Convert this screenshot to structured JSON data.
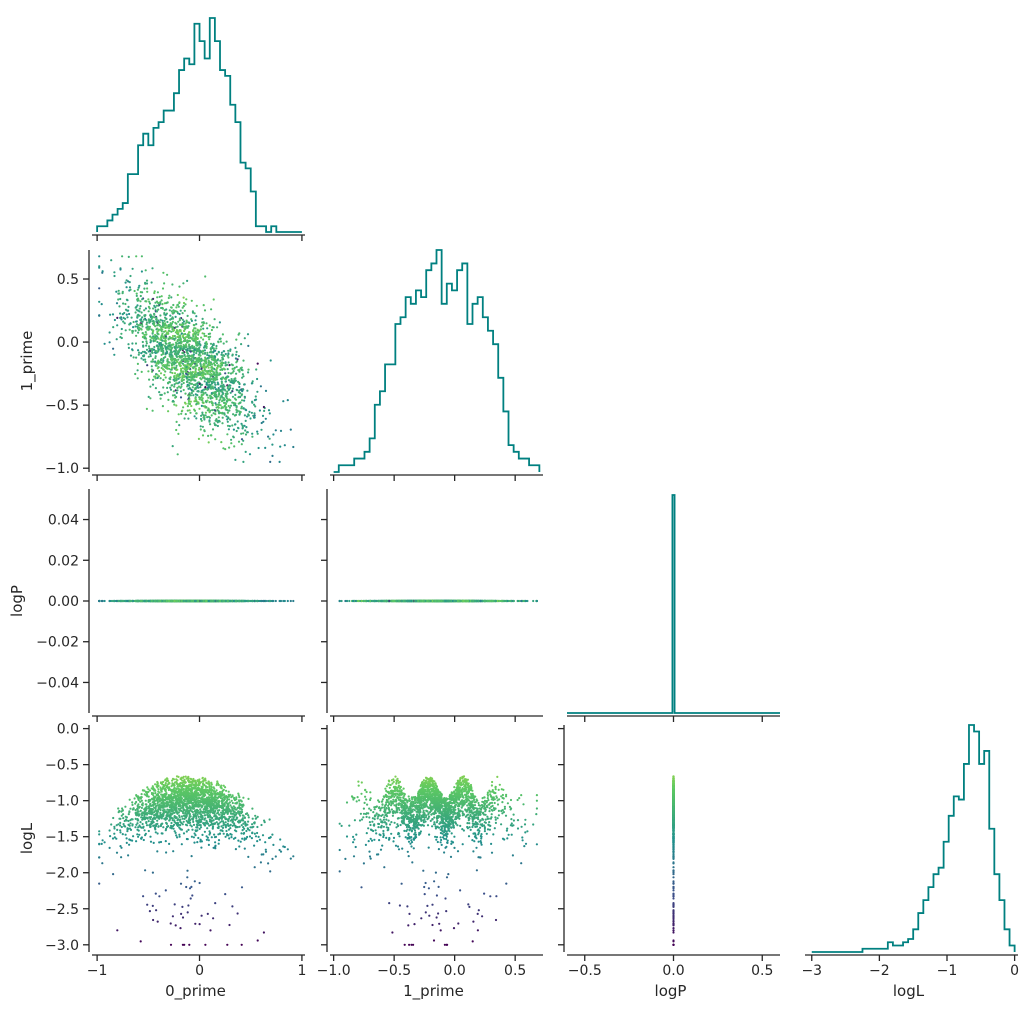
{
  "chart_data": {
    "type": "corner",
    "variables": [
      "0_prime",
      "1_prime",
      "logP",
      "logL"
    ],
    "colors": {
      "histogram": "#008080",
      "axes": "#262626",
      "colormap": "viridis",
      "colormap_stops": [
        "#440154",
        "#3b528b",
        "#21918c",
        "#5ec962",
        "#fde725"
      ]
    },
    "color_by": "logL",
    "ranges": {
      "0_prime": [
        -1.05,
        1.03
      ],
      "1_prime": [
        -1.03,
        0.73
      ],
      "logP": [
        -0.055,
        0.055
      ],
      "logL": [
        -3.1,
        0.05
      ]
    },
    "ticks": {
      "0_prime": {
        "values": [
          -1,
          0,
          1
        ],
        "labels": [
          "−1",
          "0",
          "1"
        ]
      },
      "1_prime": {
        "values": [
          -1.0,
          -0.5,
          0.0,
          0.5
        ],
        "labels": [
          "−1.0",
          "−0.5",
          "0.0",
          "0.5"
        ]
      },
      "logP": {
        "values": [
          -0.5,
          0.0,
          0.5
        ],
        "labels": [
          "−0.5",
          "0.0",
          "0.5"
        ]
      },
      "logL": {
        "values": [
          -3,
          -2,
          -1,
          0
        ],
        "labels": [
          "−3",
          "−2",
          "−1",
          "0"
        ]
      }
    },
    "row_ticks": {
      "1_prime": {
        "values": [
          -1.0,
          -0.5,
          0.0,
          0.5
        ],
        "labels": [
          "−1.0",
          "−0.5",
          "0.0",
          "0.5"
        ]
      },
      "logP": {
        "values": [
          -0.04,
          -0.02,
          0.0,
          0.02,
          0.04
        ],
        "labels": [
          "−0.04",
          "−0.02",
          "0.00",
          "0.02",
          "0.04"
        ]
      },
      "logL": {
        "values": [
          -3.0,
          -2.5,
          -2.0,
          -1.5,
          -1.0,
          -0.5,
          0.0
        ],
        "labels": [
          "−3.0",
          "−2.5",
          "−2.0",
          "−1.5",
          "−1.0",
          "−0.5",
          "0.0"
        ]
      }
    },
    "logP_diag_range": [
      -0.6,
      0.6
    ],
    "logP_value": 0.0,
    "histograms": {
      "0_prime": {
        "range": [
          -1.0,
          1.0
        ],
        "bins": 40,
        "counts": [
          1,
          1,
          2,
          3,
          4,
          5,
          10,
          10,
          15,
          17,
          15,
          18,
          19,
          21,
          21,
          24,
          28,
          30,
          29,
          36,
          33,
          30,
          37,
          33,
          28,
          27,
          22,
          19,
          12,
          11,
          7,
          1,
          1,
          0,
          1,
          0,
          0,
          0,
          0,
          0
        ]
      },
      "1_prime": {
        "range": [
          -1.0,
          0.7
        ],
        "bins": 40,
        "counts": [
          0,
          1,
          1,
          1,
          2,
          2,
          3,
          5,
          10,
          12,
          16,
          16,
          22,
          23,
          26,
          25,
          27,
          26,
          30,
          31,
          33,
          25,
          28,
          27,
          30,
          31,
          22,
          25,
          26,
          23,
          21,
          19,
          14,
          9,
          4,
          3,
          2,
          2,
          1,
          1
        ]
      },
      "logP": {
        "value": 0.0,
        "bar_width": 0.012,
        "peak_fraction": 1.0
      },
      "logL": {
        "range": [
          -3.0,
          0.0
        ],
        "bins": 40,
        "counts": [
          0,
          0,
          0,
          0,
          0,
          0,
          0,
          0,
          0,
          0,
          1,
          1,
          1,
          1,
          1,
          3,
          2,
          2,
          3,
          4,
          7,
          12,
          16,
          20,
          24,
          26,
          34,
          42,
          48,
          47,
          58,
          70,
          68,
          58,
          62,
          38,
          24,
          16,
          7,
          2
        ]
      }
    }
  }
}
